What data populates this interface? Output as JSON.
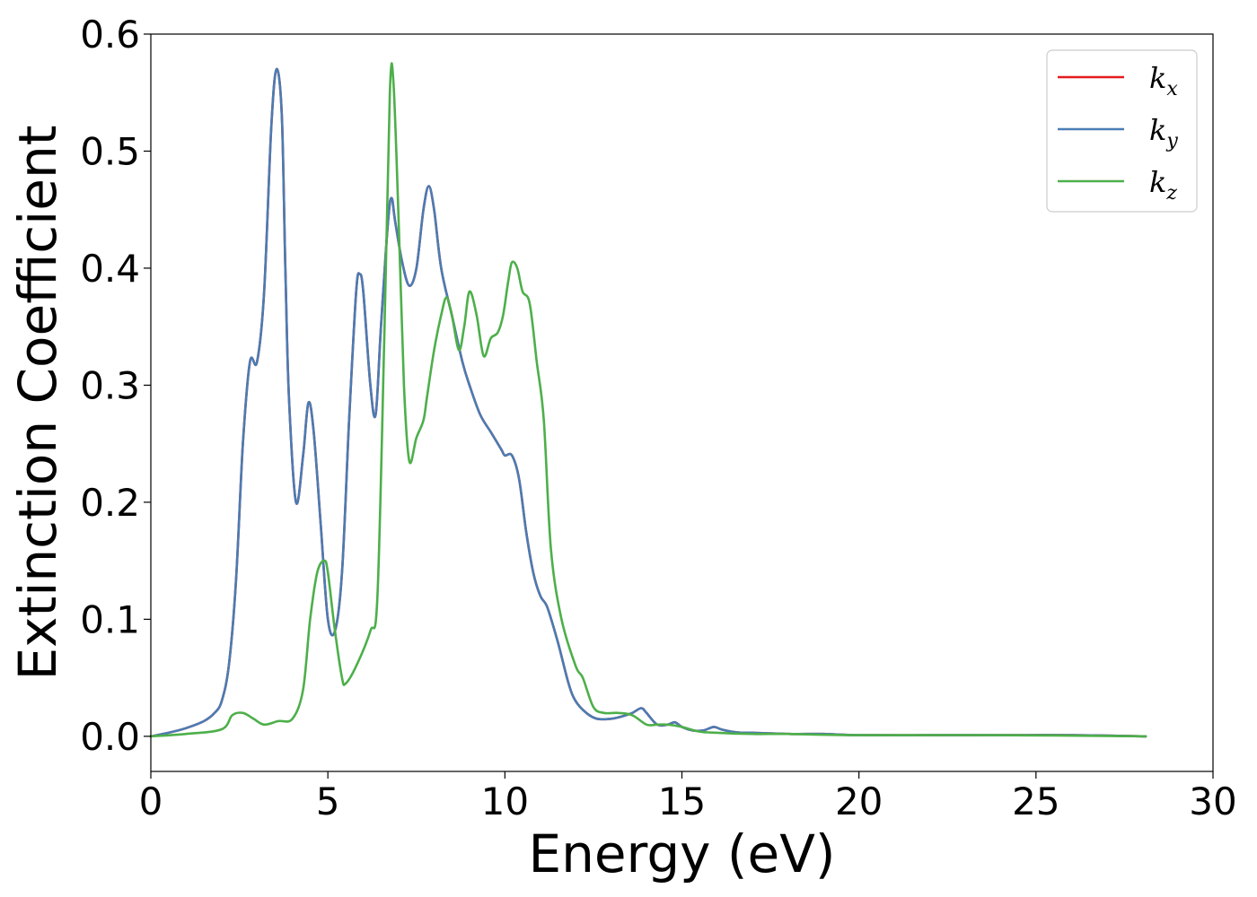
{
  "chart_data": {
    "type": "line",
    "xlabel": "Energy (eV)",
    "ylabel": "Extinction Coefficient",
    "xlim": [
      0,
      30
    ],
    "ylim": [
      -0.03,
      0.6
    ],
    "xticks": [
      0,
      5,
      10,
      15,
      20,
      25,
      30
    ],
    "xtick_labels": [
      "0",
      "5",
      "10",
      "15",
      "20",
      "25",
      "30"
    ],
    "yticks": [
      0.0,
      0.1,
      0.2,
      0.3,
      0.4,
      0.5,
      0.6
    ],
    "ytick_labels": [
      "0.0",
      "0.1",
      "0.2",
      "0.3",
      "0.4",
      "0.5",
      "0.6"
    ],
    "grid": false,
    "legend_position": "top-right",
    "series": [
      {
        "name": "k_x",
        "label_main": "k",
        "label_sub": "x",
        "color": "#e41a1c",
        "x": [
          0,
          0.5,
          1,
          1.5,
          1.8,
          2,
          2.2,
          2.4,
          2.6,
          2.8,
          3,
          3.2,
          3.4,
          3.55,
          3.7,
          3.8,
          3.9,
          4.1,
          4.3,
          4.45,
          4.6,
          4.8,
          5.0,
          5.2,
          5.4,
          5.6,
          5.8,
          5.9,
          6.0,
          6.2,
          6.35,
          6.5,
          6.7,
          6.8,
          6.9,
          7.1,
          7.3,
          7.5,
          7.7,
          7.85,
          8.0,
          8.2,
          8.5,
          8.8,
          9.0,
          9.3,
          9.6,
          9.9,
          10.0,
          10.2,
          10.4,
          10.6,
          10.8,
          11.0,
          11.2,
          11.5,
          11.8,
          12.0,
          12.3,
          12.6,
          13.0,
          13.3,
          13.6,
          13.85,
          14.0,
          14.3,
          14.6,
          14.8,
          15.0,
          15.3,
          15.6,
          15.9,
          16.1,
          16.4,
          16.7,
          17,
          18,
          19,
          20,
          22,
          24,
          26,
          28.1
        ],
        "y": [
          0.0,
          0.003,
          0.007,
          0.013,
          0.02,
          0.03,
          0.06,
          0.13,
          0.25,
          0.32,
          0.32,
          0.38,
          0.52,
          0.57,
          0.53,
          0.4,
          0.29,
          0.2,
          0.24,
          0.285,
          0.26,
          0.18,
          0.1,
          0.09,
          0.14,
          0.27,
          0.38,
          0.395,
          0.38,
          0.3,
          0.275,
          0.35,
          0.44,
          0.46,
          0.44,
          0.405,
          0.385,
          0.4,
          0.45,
          0.47,
          0.45,
          0.4,
          0.36,
          0.32,
          0.3,
          0.275,
          0.26,
          0.245,
          0.24,
          0.24,
          0.22,
          0.175,
          0.14,
          0.12,
          0.11,
          0.08,
          0.045,
          0.03,
          0.02,
          0.015,
          0.015,
          0.017,
          0.02,
          0.024,
          0.02,
          0.01,
          0.01,
          0.012,
          0.008,
          0.005,
          0.005,
          0.008,
          0.006,
          0.004,
          0.003,
          0.003,
          0.002,
          0.002,
          0.001,
          0.001,
          0.001,
          0.001,
          0.0
        ]
      },
      {
        "name": "k_y",
        "label_main": "k",
        "label_sub": "y",
        "color": "#4a7cb3",
        "x": [
          0,
          0.5,
          1,
          1.5,
          1.8,
          2,
          2.2,
          2.4,
          2.6,
          2.8,
          3,
          3.2,
          3.4,
          3.55,
          3.7,
          3.8,
          3.9,
          4.1,
          4.3,
          4.45,
          4.6,
          4.8,
          5.0,
          5.2,
          5.4,
          5.6,
          5.8,
          5.9,
          6.0,
          6.2,
          6.35,
          6.5,
          6.7,
          6.8,
          6.9,
          7.1,
          7.3,
          7.5,
          7.7,
          7.85,
          8.0,
          8.2,
          8.5,
          8.8,
          9.0,
          9.3,
          9.6,
          9.9,
          10.0,
          10.2,
          10.4,
          10.6,
          10.8,
          11.0,
          11.2,
          11.5,
          11.8,
          12.0,
          12.3,
          12.6,
          13.0,
          13.3,
          13.6,
          13.85,
          14.0,
          14.3,
          14.6,
          14.8,
          15.0,
          15.3,
          15.6,
          15.9,
          16.1,
          16.4,
          16.7,
          17,
          18,
          19,
          20,
          22,
          24,
          26,
          28.1
        ],
        "y": [
          0.0,
          0.003,
          0.007,
          0.013,
          0.02,
          0.03,
          0.06,
          0.13,
          0.25,
          0.32,
          0.32,
          0.38,
          0.52,
          0.57,
          0.53,
          0.4,
          0.29,
          0.2,
          0.24,
          0.285,
          0.26,
          0.18,
          0.1,
          0.09,
          0.14,
          0.27,
          0.38,
          0.395,
          0.38,
          0.3,
          0.275,
          0.35,
          0.44,
          0.46,
          0.44,
          0.405,
          0.385,
          0.4,
          0.45,
          0.47,
          0.45,
          0.4,
          0.36,
          0.32,
          0.3,
          0.275,
          0.26,
          0.245,
          0.24,
          0.24,
          0.22,
          0.175,
          0.14,
          0.12,
          0.11,
          0.08,
          0.045,
          0.03,
          0.02,
          0.015,
          0.015,
          0.017,
          0.02,
          0.024,
          0.02,
          0.01,
          0.01,
          0.012,
          0.008,
          0.005,
          0.005,
          0.008,
          0.006,
          0.004,
          0.003,
          0.003,
          0.002,
          0.002,
          0.001,
          0.001,
          0.001,
          0.001,
          0.0
        ]
      },
      {
        "name": "k_z",
        "label_main": "k",
        "label_sub": "z",
        "color": "#4daf4a",
        "x": [
          0,
          1,
          2,
          2.3,
          2.6,
          2.9,
          3.2,
          3.6,
          4.0,
          4.3,
          4.5,
          4.7,
          4.9,
          5.0,
          5.2,
          5.4,
          5.5,
          5.8,
          6.2,
          6.4,
          6.6,
          6.75,
          6.85,
          7.0,
          7.15,
          7.3,
          7.5,
          7.7,
          7.8,
          8.0,
          8.2,
          8.35,
          8.5,
          8.7,
          8.85,
          9.0,
          9.2,
          9.4,
          9.6,
          9.8,
          9.95,
          10.1,
          10.2,
          10.35,
          10.5,
          10.7,
          10.9,
          11.1,
          11.3,
          11.6,
          12.0,
          12.2,
          12.5,
          12.8,
          13.2,
          13.6,
          14.0,
          14.3,
          14.6,
          15.0,
          15.5,
          16,
          17,
          18,
          20,
          24,
          28.1
        ],
        "y": [
          0.0,
          0.002,
          0.006,
          0.018,
          0.02,
          0.015,
          0.01,
          0.013,
          0.015,
          0.04,
          0.1,
          0.14,
          0.15,
          0.14,
          0.09,
          0.05,
          0.045,
          0.06,
          0.09,
          0.12,
          0.35,
          0.55,
          0.56,
          0.44,
          0.3,
          0.235,
          0.255,
          0.27,
          0.29,
          0.33,
          0.36,
          0.375,
          0.36,
          0.33,
          0.35,
          0.38,
          0.36,
          0.325,
          0.34,
          0.345,
          0.36,
          0.39,
          0.405,
          0.4,
          0.38,
          0.37,
          0.32,
          0.27,
          0.16,
          0.1,
          0.06,
          0.05,
          0.025,
          0.02,
          0.02,
          0.018,
          0.01,
          0.01,
          0.01,
          0.008,
          0.004,
          0.003,
          0.002,
          0.002,
          0.001,
          0.001,
          0.0
        ]
      }
    ]
  }
}
